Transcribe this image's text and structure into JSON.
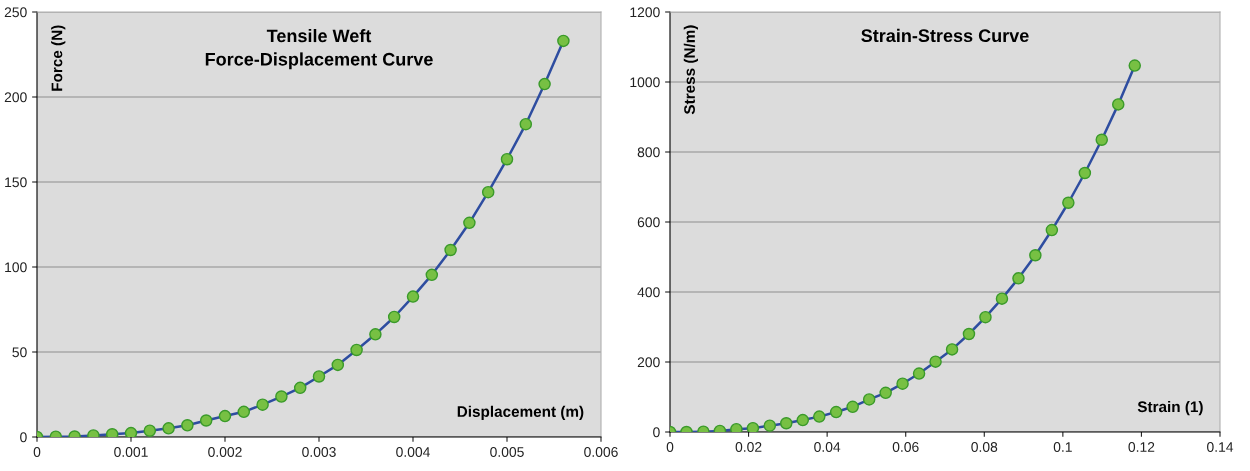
{
  "chart_data": [
    {
      "type": "line",
      "title": "Tensile Weft\nForce-Displacement Curve",
      "xlabel": "Displacement (m)",
      "ylabel": "Force (N)",
      "x": [
        0,
        0.0002,
        0.0004,
        0.0006,
        0.0008,
        0.001,
        0.0012,
        0.0014,
        0.0016,
        0.0018,
        0.002,
        0.0022,
        0.0024,
        0.0026,
        0.0028,
        0.003,
        0.0032,
        0.0034,
        0.0036,
        0.0038,
        0.004,
        0.0042,
        0.0044,
        0.0046,
        0.0048,
        0.005,
        0.0052,
        0.0054,
        0.0056
      ],
      "series": [
        {
          "color": "#2e4da0",
          "values": [
            0,
            0.2,
            0.3,
            0.9,
            1.6,
            2.3,
            3.7,
            5.1,
            6.9,
            9.7,
            12.3,
            14.8,
            19,
            23.8,
            28.9,
            35.6,
            42.4,
            51.2,
            60.4,
            70.6,
            82.6,
            95.4,
            110,
            126,
            144,
            163.4,
            184,
            207.6,
            233
          ]
        }
      ],
      "xlim": [
        0,
        0.006
      ],
      "xticks": [
        0,
        0.001,
        0.002,
        0.003,
        0.004,
        0.005,
        0.006
      ],
      "ylim": [
        0,
        250
      ],
      "yticks": [
        0,
        50,
        100,
        150,
        200,
        250
      ],
      "grid": "y",
      "marker": "circle",
      "line_style": "solid",
      "legend": false
    },
    {
      "type": "line",
      "title": "Strain-Stress Curve",
      "xlabel": "Strain (1)",
      "ylabel": "Stress (N/m)",
      "x": [
        0,
        0.0042,
        0.0085,
        0.0127,
        0.0169,
        0.0211,
        0.0254,
        0.0296,
        0.0338,
        0.038,
        0.0423,
        0.0465,
        0.0507,
        0.0549,
        0.0592,
        0.0634,
        0.0676,
        0.0718,
        0.0761,
        0.0803,
        0.0845,
        0.0887,
        0.093,
        0.0972,
        0.1014,
        0.1056,
        0.1099,
        0.1141,
        0.1183
      ],
      "series": [
        {
          "color": "#2e4da0",
          "values": [
            0,
            0,
            1,
            3,
            8,
            11,
            18,
            25,
            34,
            44,
            57,
            72,
            93,
            112,
            138,
            167,
            201,
            236,
            280,
            328,
            381,
            439,
            505,
            577,
            655,
            740,
            835,
            936,
            1047
          ]
        }
      ],
      "xlim": [
        0,
        0.14
      ],
      "xticks": [
        0,
        0.02,
        0.04,
        0.06,
        0.08,
        0.1,
        0.12,
        0.14
      ],
      "ylim": [
        0,
        1200
      ],
      "yticks": [
        0,
        200,
        400,
        600,
        800,
        1000,
        1200
      ],
      "grid": "y",
      "marker": "circle",
      "line_style": "solid",
      "legend": false
    }
  ]
}
